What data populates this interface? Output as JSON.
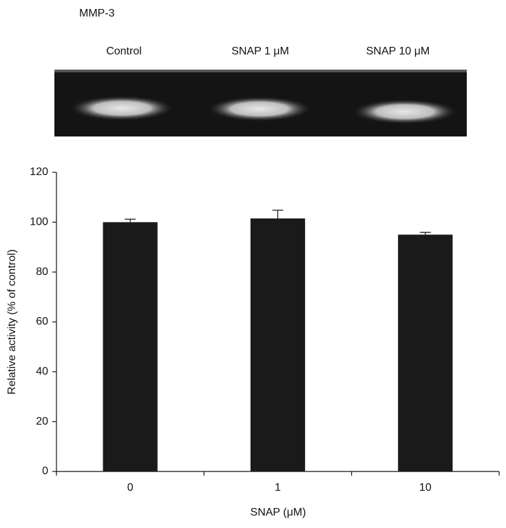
{
  "gel": {
    "title": "MMP-3",
    "lanes": [
      "Control",
      "SNAP 1 μM",
      "SNAP 10 μM"
    ]
  },
  "chart_data": {
    "type": "bar",
    "x_label": "SNAP (μM)",
    "y_label": "Relative activity (% of control)",
    "categories": [
      "0",
      "1",
      "10"
    ],
    "values": [
      100,
      101.5,
      95
    ],
    "errors": [
      1.2,
      3.3,
      0.9
    ],
    "color": "#1a1a1a",
    "ylim": [
      0,
      120
    ],
    "yticks": [
      0,
      20,
      40,
      60,
      80,
      100,
      120
    ],
    "grid": false
  }
}
